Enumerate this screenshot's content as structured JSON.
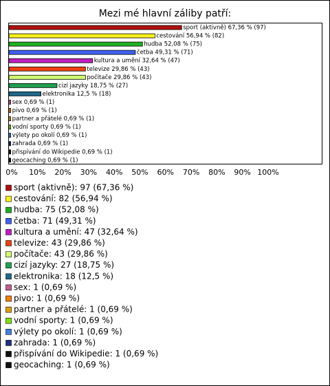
{
  "chart_data": {
    "type": "bar",
    "orientation": "horizontal",
    "title": "Mezi mé hlavní záliby patří:",
    "categories": [
      "sport (aktivně)",
      "cestování",
      "hudba",
      "četba",
      "kultura a umění",
      "televize",
      "počítače",
      "cizí jazyky",
      "elektronika",
      "sex",
      "pivo",
      "partner a přátelé",
      "vodní sporty",
      "výlety po okolí",
      "zahrada",
      "přispívání do Wikipedie",
      "geocaching"
    ],
    "values": [
      67.36,
      56.94,
      52.08,
      49.31,
      32.64,
      29.86,
      29.86,
      18.75,
      12.5,
      0.69,
      0.69,
      0.69,
      0.69,
      0.69,
      0.69,
      0.69,
      0.69
    ],
    "value_labels": [
      "sport (aktivně) 67,36 % (97)",
      "cestování 56,94 % (82)",
      "hudba 52,08 % (75)",
      "četba 49,31 % (71)",
      "kultura a umění 32,64 % (47)",
      "televize 29,86 % (43)",
      "počítače 29,86 % (43)",
      "cizí jazyky 18,75 % (27)",
      "elektronika 12,5 % (18)",
      "sex 0,69 % (1)",
      "pivo 0,69 % (1)",
      "partner a přátelé 0,69 % (1)",
      "vodní sporty 0,69 % (1)",
      "výlety po okolí 0,69 % (1)",
      "zahrada 0,69 % (1)",
      "přispívání do Wikipedie 0,69 % (1)",
      "geocaching 0,69 % (1)"
    ],
    "legend_labels": [
      "sport (aktivně): 97 (67,36 %)",
      "cestování: 82 (56,94 %)",
      "hudba: 75 (52,08 %)",
      "četba: 71 (49,31 %)",
      "kultura a umění: 47 (32,64 %)",
      "televize: 43 (29,86 %)",
      "počítače: 43 (29,86 %)",
      "cizí jazyky: 27 (18,75 %)",
      "elektronika: 18 (12,5 %)",
      "sex: 1 (0,69 %)",
      "pivo: 1 (0,69 %)",
      "partner a přátelé: 1 (0,69 %)",
      "vodní sporty: 1 (0,69 %)",
      "výlety po okolí: 1 (0,69 %)",
      "zahrada: 1 (0,69 %)",
      "přispívání do Wikipedie: 1 (0,69 %)",
      "geocaching: 1 (0,69 %)"
    ],
    "colors": [
      "#b01010",
      "#f8f020",
      "#20b020",
      "#4060f0",
      "#c020c0",
      "#f04010",
      "#d0f870",
      "#20a050",
      "#206888",
      "#c06090",
      "#f08010",
      "#e0a010",
      "#80e010",
      "#4080e0",
      "#203080",
      "#101010",
      "#101010"
    ],
    "xlim": [
      0,
      122
    ],
    "xticks": [
      {
        "value": 0,
        "label": "0%"
      },
      {
        "value": 10,
        "label": "10%"
      },
      {
        "value": 20,
        "label": "20%"
      },
      {
        "value": 30,
        "label": "30%"
      },
      {
        "value": 40,
        "label": "40%"
      },
      {
        "value": 50,
        "label": "50%"
      },
      {
        "value": 60,
        "label": "60%"
      },
      {
        "value": 70,
        "label": "70%"
      },
      {
        "value": 80,
        "label": "80%"
      },
      {
        "value": 90,
        "label": "90%"
      },
      {
        "value": 100,
        "label": "100%"
      }
    ]
  }
}
